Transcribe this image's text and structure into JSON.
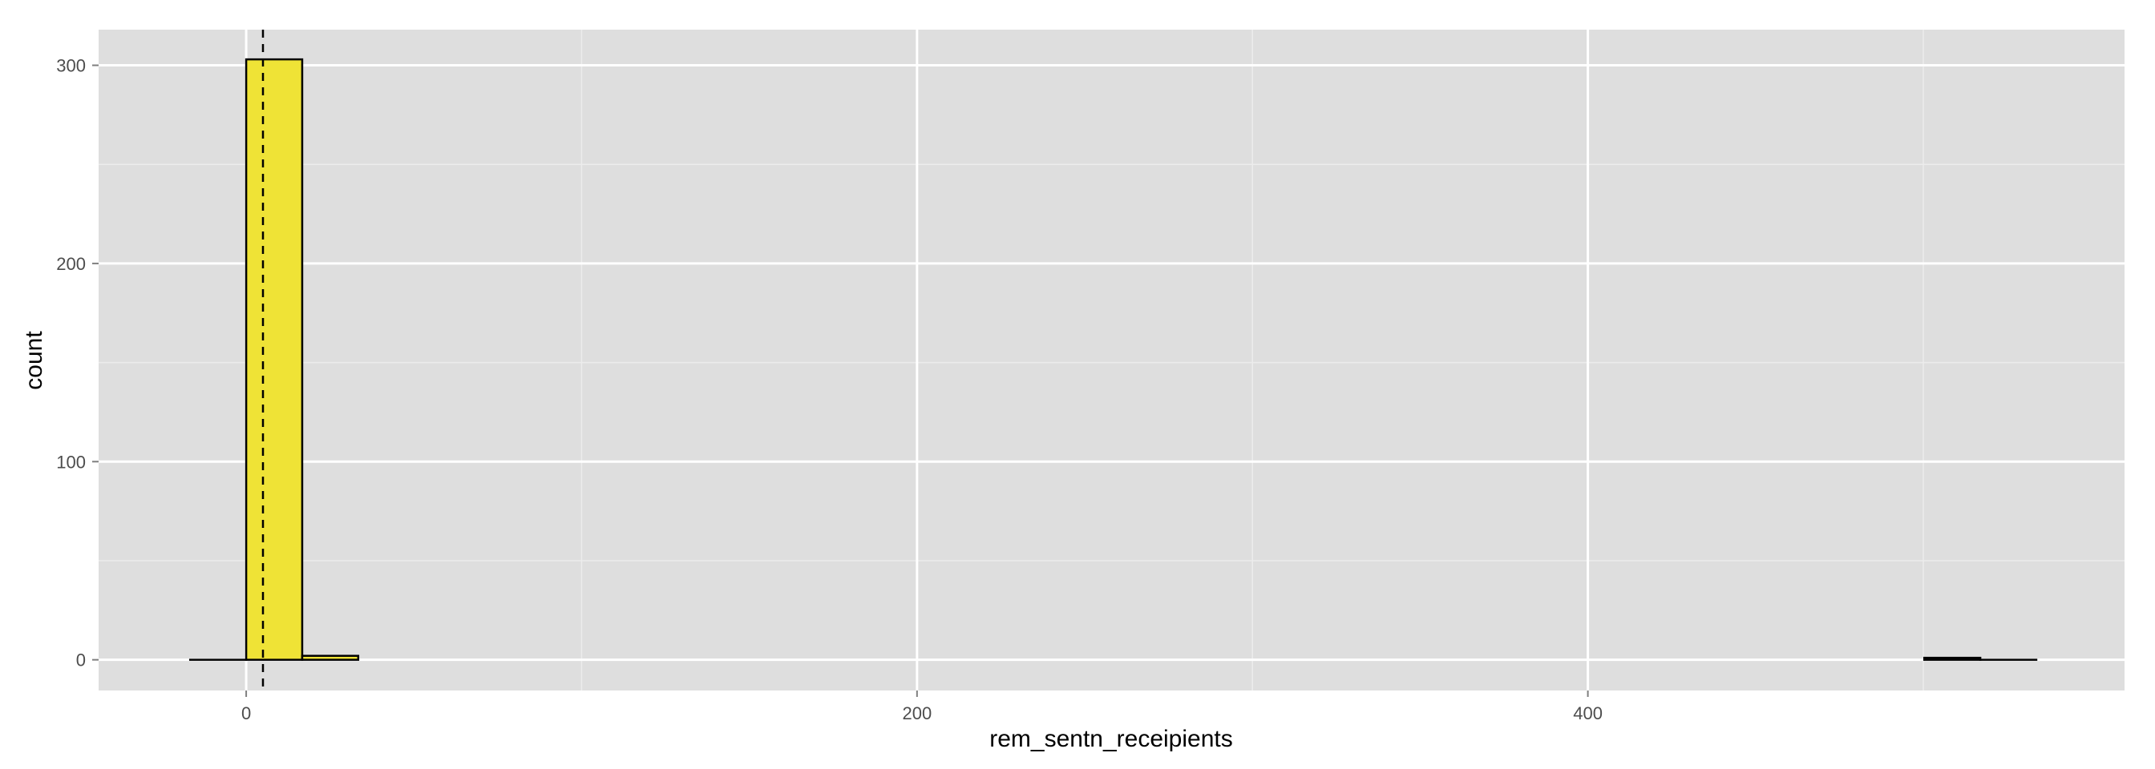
{
  "chart_data": {
    "type": "bar",
    "subtype": "histogram",
    "title": "",
    "xlabel": "rem_sentn_receipients",
    "ylabel": "count",
    "xlim": [
      -44,
      560
    ],
    "ylim": [
      -15.5,
      318
    ],
    "x_ticks": [
      0,
      200,
      400
    ],
    "y_ticks": [
      0,
      100,
      200,
      300
    ],
    "x_minor_gridlines": [
      100,
      300,
      500
    ],
    "y_minor_gridlines": [
      50,
      150,
      250
    ],
    "grid": true,
    "legend": "none",
    "bin_width": 16.7,
    "bins": [
      {
        "x_start": -16.7,
        "x_end": 0,
        "count": 0
      },
      {
        "x_start": 0,
        "x_end": 16.7,
        "count": 303
      },
      {
        "x_start": 16.7,
        "x_end": 33.4,
        "count": 2
      },
      {
        "x_start": 500.3,
        "x_end": 517.0,
        "count": 1
      },
      {
        "x_start": 517.0,
        "x_end": 533.7,
        "count": 0
      }
    ],
    "vline": {
      "x": 5,
      "style": "dashed"
    },
    "colors": {
      "panel_background": "#dedede",
      "grid_major": "#ffffff",
      "grid_minor": "#ececec",
      "bar_fill": "#efe336",
      "bar_outline": "#000000",
      "vline": "#000000"
    }
  }
}
